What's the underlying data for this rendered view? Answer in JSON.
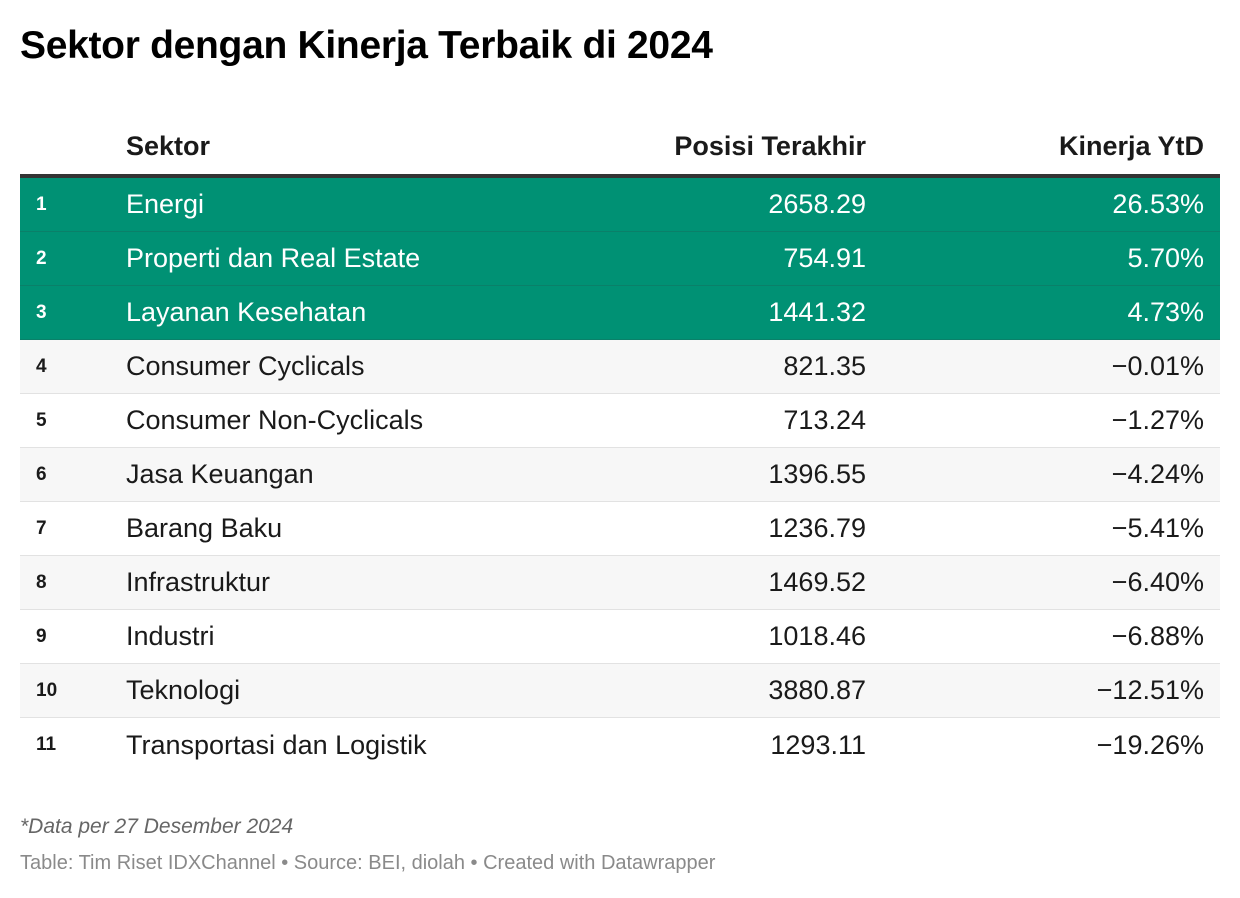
{
  "title": "Sektor dengan Kinerja Terbaik di 2024",
  "colors": {
    "highlight": "#009174",
    "alt_row": "#f7f7f7",
    "header_rule": "#333333"
  },
  "chart_data": {
    "type": "table",
    "columns": [
      "",
      "Sektor",
      "Posisi Terakhir",
      "Kinerja YtD"
    ],
    "rows": [
      {
        "rank": "1",
        "sektor": "Energi",
        "posisi": "2658.29",
        "kinerja": "26.53%",
        "highlight": true
      },
      {
        "rank": "2",
        "sektor": "Properti dan Real Estate",
        "posisi": "754.91",
        "kinerja": "5.70%",
        "highlight": true
      },
      {
        "rank": "3",
        "sektor": "Layanan Kesehatan",
        "posisi": "1441.32",
        "kinerja": "4.73%",
        "highlight": true
      },
      {
        "rank": "4",
        "sektor": "Consumer Cyclicals",
        "posisi": "821.35",
        "kinerja": "−0.01%",
        "highlight": false
      },
      {
        "rank": "5",
        "sektor": "Consumer Non-Cyclicals",
        "posisi": "713.24",
        "kinerja": "−1.27%",
        "highlight": false
      },
      {
        "rank": "6",
        "sektor": "Jasa Keuangan",
        "posisi": "1396.55",
        "kinerja": "−4.24%",
        "highlight": false
      },
      {
        "rank": "7",
        "sektor": "Barang Baku",
        "posisi": "1236.79",
        "kinerja": "−5.41%",
        "highlight": false
      },
      {
        "rank": "8",
        "sektor": "Infrastruktur",
        "posisi": "1469.52",
        "kinerja": "−6.40%",
        "highlight": false
      },
      {
        "rank": "9",
        "sektor": "Industri",
        "posisi": "1018.46",
        "kinerja": "−6.88%",
        "highlight": false
      },
      {
        "rank": "10",
        "sektor": "Teknologi",
        "posisi": "3880.87",
        "kinerja": "−12.51%",
        "highlight": false
      },
      {
        "rank": "11",
        "sektor": "Transportasi dan Logistik",
        "posisi": "1293.11",
        "kinerja": "−19.26%",
        "highlight": false
      }
    ]
  },
  "footer": {
    "note": "*Data per 27 Desember 2024",
    "source": "Table: Tim Riset IDXChannel • Source: BEI, diolah • Created with Datawrapper"
  }
}
